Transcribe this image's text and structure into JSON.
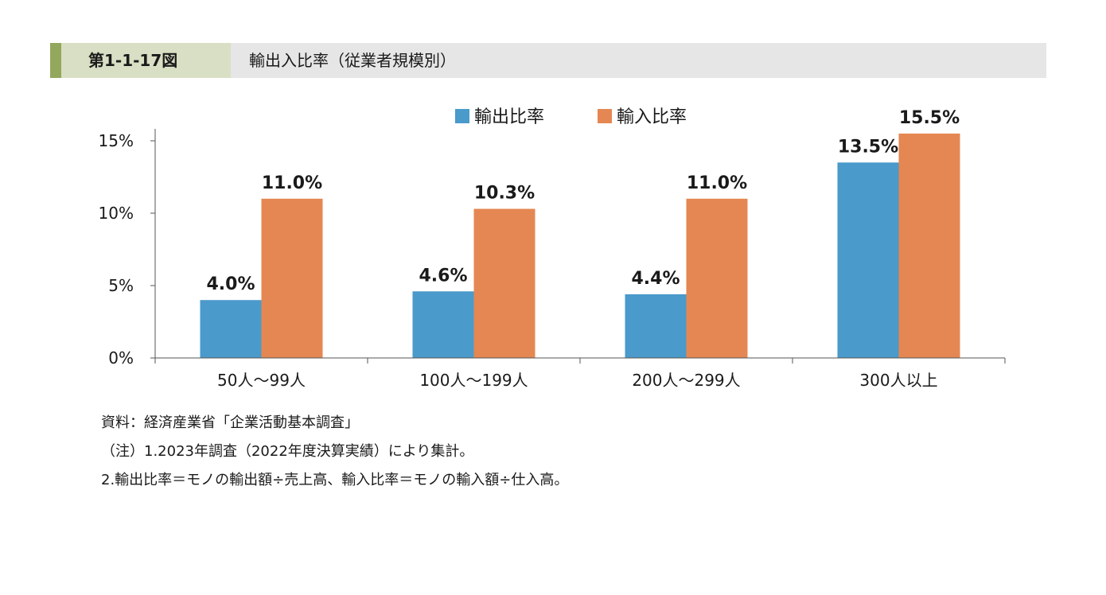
{
  "header": {
    "figure_number": "第1-1-17図",
    "title": "輸出入比率（従業者規模別）"
  },
  "colors": {
    "export": "#4a9acb",
    "import": "#e58752",
    "header_accent": "#93a85d",
    "header_number_bg": "#d8dfc4",
    "header_bg": "#e6e6e6"
  },
  "chart_data": {
    "type": "bar",
    "categories": [
      "50人～99人",
      "100人～199人",
      "200人～299人",
      "300人以上"
    ],
    "series": [
      {
        "name": "輸出比率",
        "values": [
          4.0,
          4.6,
          4.4,
          13.5
        ],
        "labels": [
          "4.0%",
          "4.6%",
          "4.4%",
          "13.5%"
        ]
      },
      {
        "name": "輸入比率",
        "values": [
          11.0,
          10.3,
          11.0,
          15.5
        ],
        "labels": [
          "11.0%",
          "10.3%",
          "11.0%",
          "15.5%"
        ]
      }
    ],
    "yticks": [
      0,
      5,
      10,
      15
    ],
    "ytick_labels": [
      "0%",
      "5%",
      "10%",
      "15%"
    ],
    "ylim": [
      0,
      15
    ],
    "legend_position": "top-right",
    "xlabel": "",
    "ylabel": ""
  },
  "notes": {
    "source": "資料：経済産業省「企業活動基本調査」",
    "note1": "（注）1.2023年調査（2022年度決算実績）により集計。",
    "note2": "2.輸出比率＝モノの輸出額÷売上高、輸入比率＝モノの輸入額÷仕入高。"
  }
}
